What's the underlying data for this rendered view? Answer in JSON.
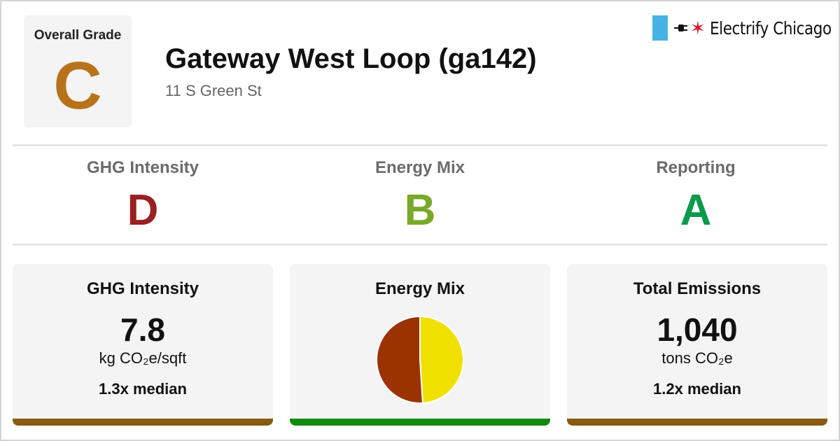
{
  "overall": {
    "label": "Overall Grade",
    "grade": "C",
    "color": "#b8731a"
  },
  "building": {
    "name": "Gateway West Loop (ga142)",
    "address": "11 S Green St"
  },
  "brand": {
    "name": "Electrify Chicago",
    "flag_color": "#47b3e4",
    "star_color": "#d0202a"
  },
  "subgrades": [
    {
      "label": "GHG Intensity",
      "grade": "D",
      "color": "#9a1f1f"
    },
    {
      "label": "Energy Mix",
      "grade": "B",
      "color": "#7aa82a"
    },
    {
      "label": "Reporting",
      "grade": "A",
      "color": "#0a9a4a"
    }
  ],
  "cards": {
    "ghg": {
      "title": "GHG Intensity",
      "value": "7.8",
      "unit": "kg CO₂e/sqft",
      "median": "1.3x median",
      "bar_color": "#8a5a10"
    },
    "energy": {
      "title": "Energy Mix",
      "bar_color": "#118a11"
    },
    "emissions": {
      "title": "Total Emissions",
      "value": "1,040",
      "unit": "tons CO₂e",
      "median": "1.2x median",
      "bar_color": "#8a5a10"
    }
  },
  "chart_data": {
    "type": "pie",
    "slices": [
      {
        "value": 49,
        "color": "#f0e000"
      },
      {
        "value": 51,
        "color": "#9a3300"
      }
    ]
  }
}
